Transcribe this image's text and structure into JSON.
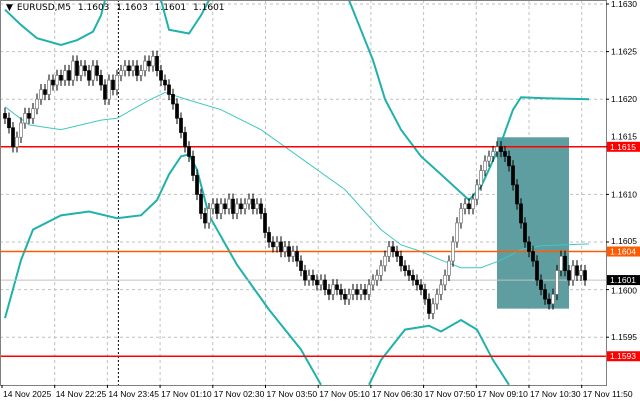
{
  "header": {
    "symbol": "EURUSD,M5",
    "open": "1.1603",
    "high": "1.1603",
    "low": "1.1601",
    "close": "1.1601",
    "menu_icon": "triangle-down-icon"
  },
  "colors": {
    "background": "#ffffff",
    "grid": "#c0c0c0",
    "bull_body": "#ffffff",
    "bear_body": "#000000",
    "band": "#20b2aa",
    "ma": "#40c8c0",
    "support_resistance": "#ff0000",
    "pivot": "#ff5a00",
    "bid_line": "#c0c0c0",
    "rectangle": "#5f9ea0"
  },
  "chart_data": {
    "type": "candlestick",
    "title": "EURUSD,M5",
    "ylim": [
      1.1589,
      1.1631
    ],
    "y_ticks": [
      "1.1630",
      "1.1625",
      "1.1620",
      "1.1615",
      "1.1610",
      "1.1605",
      "1.1600",
      "1.1595"
    ],
    "x_ticks": [
      "14 Nov 2025",
      "14 Nov 22:25",
      "14 Nov 23:45",
      "17 Nov 01:10",
      "17 Nov 02:30",
      "17 Nov 03:50",
      "17 Nov 05:10",
      "17 Nov 06:30",
      "17 Nov 07:50",
      "17 Nov 09:10",
      "17 Nov 10:30",
      "17 Nov 11:50"
    ],
    "grid": true,
    "day_separator_after_tick": "14 Nov 23:45",
    "closes": [
      1.1618,
      1.1617,
      1.1615,
      1.1616,
      1.16175,
      1.16185,
      1.1618,
      1.1619,
      1.162,
      1.1621,
      1.16205,
      1.1622,
      1.16215,
      1.16225,
      1.1622,
      1.1623,
      1.1622,
      1.1624,
      1.16225,
      1.16235,
      1.1623,
      1.1622,
      1.16235,
      1.16225,
      1.16215,
      1.162,
      1.1622,
      1.1621,
      1.16225,
      1.1623,
      1.16235,
      1.1623,
      1.16235,
      1.16225,
      1.1623,
      1.1624,
      1.16235,
      1.16245,
      1.1623,
      1.1622,
      1.16215,
      1.16205,
      1.16195,
      1.1618,
      1.16165,
      1.1615,
      1.1614,
      1.1612,
      1.161,
      1.1608,
      1.1607,
      1.16085,
      1.1609,
      1.1608,
      1.1609,
      1.16085,
      1.16095,
      1.1608,
      1.1609,
      1.16085,
      1.1609,
      1.16095,
      1.16085,
      1.1609,
      1.1608,
      1.1606,
      1.1605,
      1.16045,
      1.1605,
      1.1604,
      1.16045,
      1.16035,
      1.1604,
      1.1603,
      1.1602,
      1.1601,
      1.16015,
      1.1601,
      1.16005,
      1.1601,
      1.16,
      1.15995,
      1.16005,
      1.16,
      1.15995,
      1.1599,
      1.15995,
      1.16,
      1.15995,
      1.16,
      1.15995,
      1.16005,
      1.1601,
      1.16015,
      1.16025,
      1.16035,
      1.16045,
      1.1604,
      1.16035,
      1.16025,
      1.1602,
      1.16015,
      1.1601,
      1.16005,
      1.16,
      1.1599,
      1.15975,
      1.15985,
      1.15995,
      1.16005,
      1.16015,
      1.1603,
      1.1605,
      1.1607,
      1.16085,
      1.1609,
      1.16085,
      1.16095,
      1.1611,
      1.16125,
      1.16135,
      1.1614,
      1.16145,
      1.1615,
      1.16145,
      1.1614,
      1.1613,
      1.1611,
      1.1609,
      1.1607,
      1.1605,
      1.1604,
      1.1603,
      1.1601,
      1.16,
      1.1599,
      1.15985,
      1.15995,
      1.1602,
      1.16035,
      1.1602,
      1.1601,
      1.16025,
      1.16015,
      1.1602,
      1.1601
    ],
    "indicators": {
      "moving_average": [
        [
          0,
          1.16192
        ],
        [
          6,
          1.16173
        ],
        [
          14,
          1.16168
        ],
        [
          24,
          1.16178
        ],
        [
          28,
          1.1618
        ],
        [
          36,
          1.16199
        ],
        [
          40,
          1.16207
        ],
        [
          46,
          1.16199
        ],
        [
          54,
          1.16189
        ],
        [
          64,
          1.16168
        ],
        [
          71,
          1.16147
        ],
        [
          85,
          1.16105
        ],
        [
          94,
          1.16063
        ],
        [
          99,
          1.16047
        ],
        [
          104,
          1.1604
        ],
        [
          109,
          1.16031
        ],
        [
          114,
          1.16023
        ],
        [
          119,
          1.16023
        ],
        [
          124,
          1.16031
        ],
        [
          129,
          1.16042
        ],
        [
          134,
          1.16046
        ],
        [
          146,
          1.16048
        ]
      ],
      "upper_band": [
        [
          [
            0,
            1.16294
          ],
          [
            4,
            1.16278
          ],
          [
            8,
            1.16264
          ],
          [
            14,
            1.16257
          ],
          [
            18,
            1.16262
          ],
          [
            22,
            1.16271
          ],
          [
            24,
            1.16288
          ],
          [
            25,
            1.16304
          ]
        ],
        [
          [
            39,
            1.16304
          ],
          [
            41,
            1.16273
          ],
          [
            46,
            1.16269
          ],
          [
            49,
            1.16288
          ],
          [
            51,
            1.16304
          ]
        ],
        [
          [
            86,
            1.16304
          ],
          [
            88,
            1.16283
          ],
          [
            92,
            1.16241
          ],
          [
            95,
            1.162
          ],
          [
            99,
            1.16168
          ],
          [
            104,
            1.1614
          ],
          [
            109,
            1.16121
          ],
          [
            116,
            1.16094
          ],
          [
            119,
            1.16108
          ],
          [
            124,
            1.16154
          ],
          [
            127,
            1.16189
          ],
          [
            129,
            1.16202
          ],
          [
            135,
            1.16201
          ],
          [
            146,
            1.162
          ]
        ]
      ],
      "lower_band": [
        [
          [
            0,
            1.1597
          ],
          [
            4,
            1.16031
          ],
          [
            7,
            1.16063
          ],
          [
            14,
            1.16078
          ],
          [
            21,
            1.16082
          ],
          [
            28,
            1.16075
          ],
          [
            34,
            1.16078
          ],
          [
            38,
            1.16094
          ],
          [
            41,
            1.16121
          ],
          [
            44,
            1.1614
          ],
          [
            46,
            1.16142
          ],
          [
            48,
            1.16126
          ],
          [
            51,
            1.16078
          ],
          [
            58,
            1.16026
          ],
          [
            66,
            1.15979
          ],
          [
            74,
            1.15937
          ],
          [
            79,
            1.159
          ]
        ],
        [
          [
            91,
            1.159
          ],
          [
            94,
            1.15926
          ],
          [
            100,
            1.15958
          ],
          [
            106,
            1.15962
          ],
          [
            109,
            1.15956
          ],
          [
            114,
            1.15968
          ],
          [
            118,
            1.15958
          ],
          [
            122,
            1.15926
          ],
          [
            126,
            1.159
          ]
        ]
      ]
    },
    "levels": [
      {
        "price": 1.1615,
        "label": "1.1615",
        "kind": "resistance"
      },
      {
        "price": 1.1604,
        "label": "1.1604",
        "kind": "pivot"
      },
      {
        "price": 1.1593,
        "label": "1.1593",
        "kind": "support"
      }
    ],
    "bid": {
      "price": 1.1601,
      "label": "1.1601"
    },
    "rectangle": {
      "from_bar": 124,
      "to_bar": 142,
      "price_top": 1.1616,
      "price_bottom": 1.1598
    }
  }
}
